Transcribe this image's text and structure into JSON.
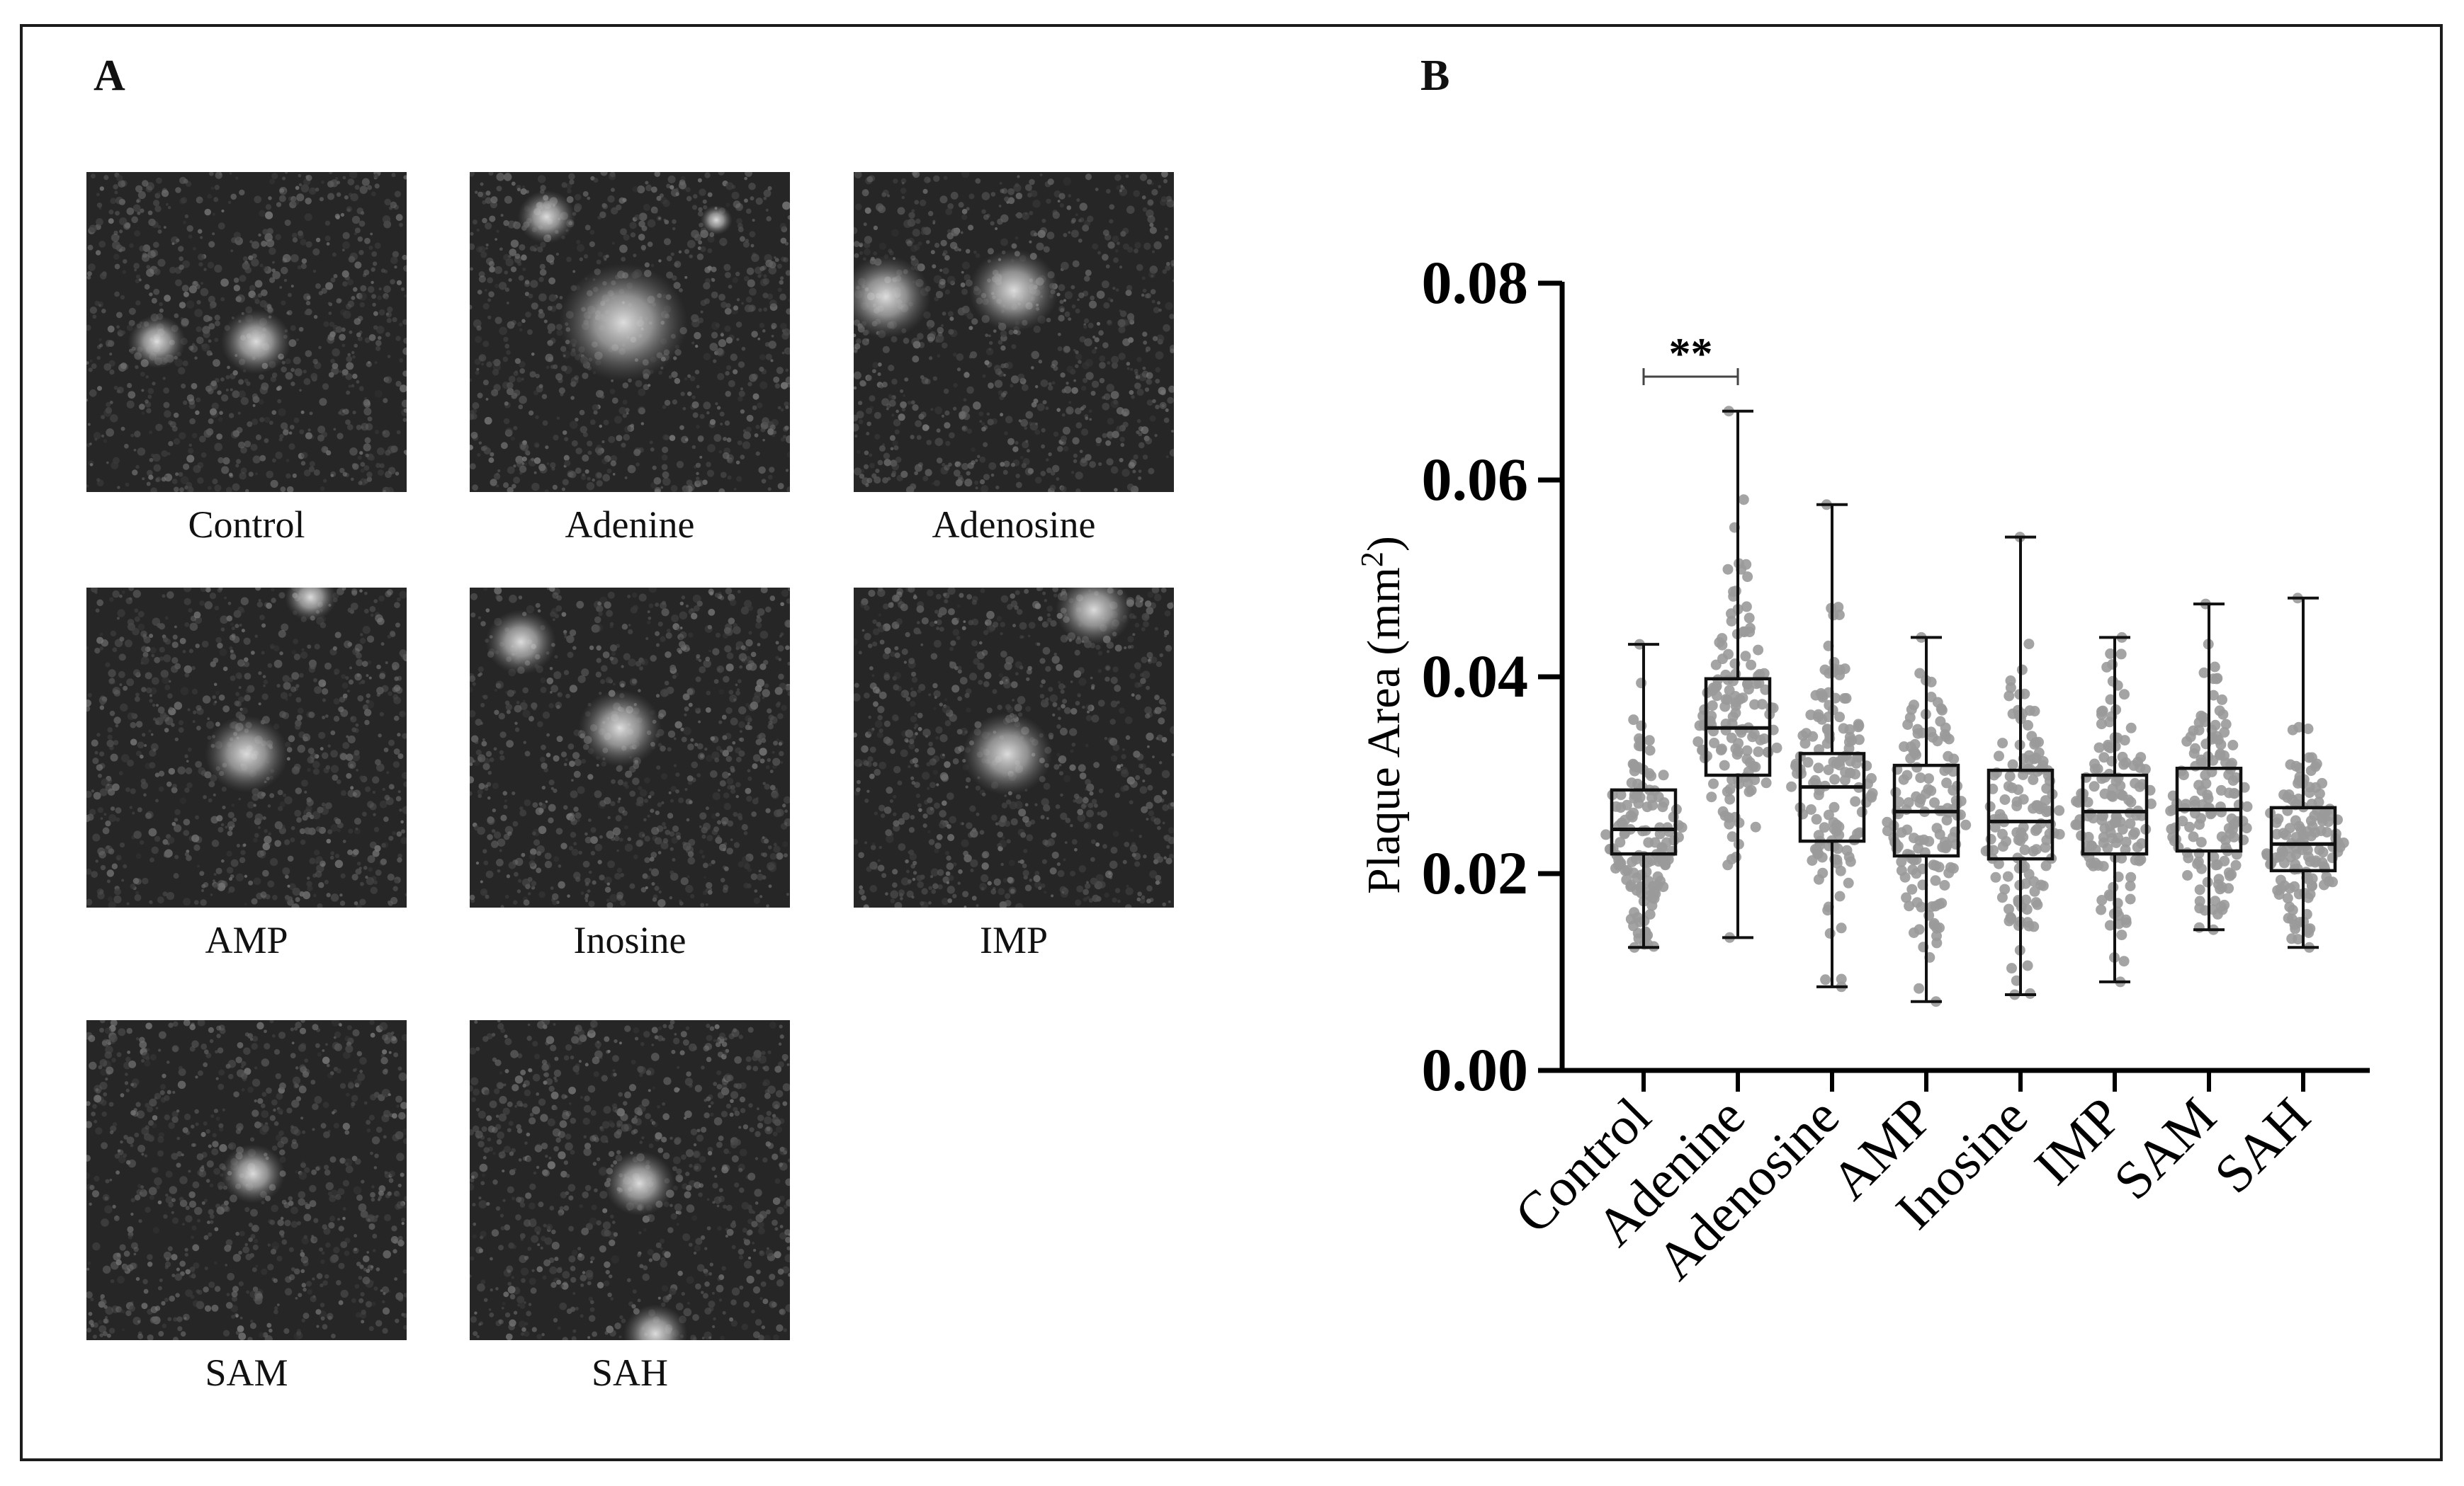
{
  "panels": {
    "a_label": "A",
    "b_label": "B"
  },
  "micrographs": [
    {
      "label": "Control",
      "plaques": [
        [
          0.22,
          0.53,
          0.09
        ],
        [
          0.53,
          0.53,
          0.11
        ]
      ]
    },
    {
      "label": "Adenine",
      "plaques": [
        [
          0.24,
          0.14,
          0.09
        ],
        [
          0.48,
          0.47,
          0.2
        ],
        [
          0.77,
          0.15,
          0.05
        ]
      ]
    },
    {
      "label": "Adenosine",
      "plaques": [
        [
          0.1,
          0.39,
          0.14
        ],
        [
          0.5,
          0.37,
          0.14
        ]
      ]
    },
    {
      "label": "AMP",
      "plaques": [
        [
          0.5,
          0.52,
          0.13
        ],
        [
          0.7,
          0.03,
          0.08
        ]
      ]
    },
    {
      "label": "Inosine",
      "plaques": [
        [
          0.16,
          0.17,
          0.11
        ],
        [
          0.47,
          0.44,
          0.13
        ]
      ]
    },
    {
      "label": "IMP",
      "plaques": [
        [
          0.75,
          0.07,
          0.12
        ],
        [
          0.48,
          0.52,
          0.14
        ]
      ]
    },
    {
      "label": "SAM",
      "plaques": [
        [
          0.52,
          0.48,
          0.1
        ]
      ]
    },
    {
      "label": "SAH",
      "plaques": [
        [
          0.53,
          0.51,
          0.11
        ],
        [
          0.58,
          0.98,
          0.1
        ]
      ]
    }
  ],
  "colors": {
    "box": "#111111",
    "points": "#9a9a9a",
    "axis": "#000000"
  },
  "chart_data": {
    "type": "box",
    "title": "",
    "xlabel": "",
    "ylabel_main": "Plaque Area (mm",
    "ylabel_sup": "2",
    "ylabel_end": ")",
    "ylim": [
      0,
      0.08
    ],
    "yticks": [
      "0.00",
      "0.02",
      "0.04",
      "0.06",
      "0.08"
    ],
    "categories": [
      "Control",
      "Adenine",
      "Adenosine",
      "AMP",
      "Inosine",
      "IMP",
      "SAM",
      "SAH"
    ],
    "boxes": [
      {
        "min": 0.0125,
        "q1": 0.022,
        "median": 0.0245,
        "q3": 0.0285,
        "max": 0.0433
      },
      {
        "min": 0.0135,
        "q1": 0.03,
        "median": 0.0348,
        "q3": 0.0398,
        "max": 0.067
      },
      {
        "min": 0.0085,
        "q1": 0.0233,
        "median": 0.0288,
        "q3": 0.0322,
        "max": 0.0575
      },
      {
        "min": 0.007,
        "q1": 0.0218,
        "median": 0.0263,
        "q3": 0.031,
        "max": 0.044
      },
      {
        "min": 0.0077,
        "q1": 0.0215,
        "median": 0.0253,
        "q3": 0.0305,
        "max": 0.0542
      },
      {
        "min": 0.009,
        "q1": 0.022,
        "median": 0.0263,
        "q3": 0.03,
        "max": 0.044
      },
      {
        "min": 0.0143,
        "q1": 0.0223,
        "median": 0.0265,
        "q3": 0.0307,
        "max": 0.0474
      },
      {
        "min": 0.0125,
        "q1": 0.0203,
        "median": 0.023,
        "q3": 0.0267,
        "max": 0.048
      }
    ],
    "significance": {
      "between": [
        0,
        1
      ],
      "y": 0.0705,
      "label": "**"
    },
    "points_per_group": 140
  }
}
